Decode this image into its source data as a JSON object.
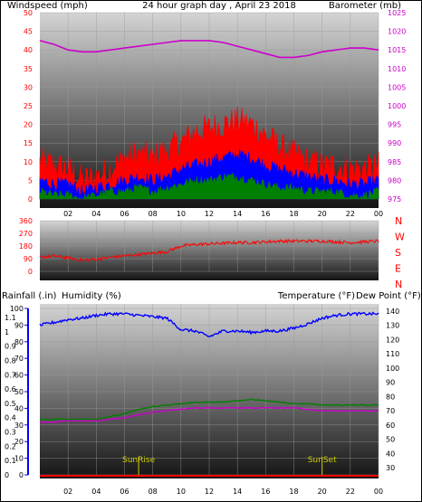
{
  "colors": {
    "wind": "#ff0000",
    "gust_avg": "#0000ff",
    "wind_min": "#008000",
    "baro": "#cc00cc",
    "direction": "#ff0000",
    "humidity": "#0000ff",
    "temperature": "#008000",
    "dewpoint": "#cc00cc",
    "rain": "#ff0000",
    "sun": "#cccc00",
    "temp_label": "#006400",
    "dew_label": "#cc00cc"
  },
  "chart_data": [
    {
      "type": "area",
      "title": "24 hour graph day , April 23 2018",
      "ylabel_left": "Windspeed (mph)",
      "ylabel_right": "Barometer (mb)",
      "xticks": [
        "02",
        "04",
        "06",
        "08",
        "10",
        "12",
        "14",
        "16",
        "18",
        "20",
        "22",
        "00"
      ],
      "yticks_left": [
        "0",
        "5",
        "10",
        "15",
        "20",
        "25",
        "30",
        "35",
        "40",
        "45",
        "50"
      ],
      "yticks_right": [
        "975",
        "980",
        "985",
        "990",
        "995",
        "1000",
        "1005",
        "1010",
        "1015",
        "1020",
        "1025"
      ],
      "ylim_left": [
        0,
        50
      ],
      "ylim_right": [
        975,
        1025
      ],
      "hours": [
        0,
        1,
        2,
        3,
        4,
        5,
        6,
        7,
        8,
        9,
        10,
        11,
        12,
        13,
        14,
        15,
        16,
        17,
        18,
        19,
        20,
        21,
        22,
        23,
        24
      ],
      "series": [
        {
          "name": "",
          "values": [
            10,
            9,
            8,
            5,
            6,
            8,
            11,
            12,
            11,
            13,
            15,
            18,
            19,
            20,
            21,
            20,
            17,
            14,
            12,
            10,
            9,
            9,
            8,
            8,
            9
          ]
        },
        {
          "name": "",
          "values": [
            5,
            4,
            4,
            2,
            3,
            4,
            5,
            6,
            5,
            6,
            8,
            9,
            10,
            11,
            12,
            11,
            9,
            8,
            7,
            6,
            5,
            5,
            4,
            4,
            5
          ]
        },
        {
          "name": "",
          "values": [
            2,
            1,
            1,
            0,
            1,
            2,
            2,
            3,
            2,
            3,
            4,
            5,
            5,
            6,
            6,
            5,
            4,
            3,
            3,
            2,
            2,
            2,
            1,
            1,
            2
          ]
        }
      ],
      "barometer": [
        1017.5,
        1016.5,
        1015,
        1014.5,
        1014.5,
        1015,
        1015.5,
        1016,
        1016.5,
        1017,
        1017.5,
        1017.5,
        1017.5,
        1017,
        1016,
        1015,
        1014,
        1013,
        1013,
        1013.5,
        1014.5,
        1015,
        1015.5,
        1015.5,
        1015
      ]
    },
    {
      "type": "line",
      "yticks_left": [
        "0",
        "90",
        "180",
        "270",
        "360"
      ],
      "ylim": [
        0,
        360
      ],
      "compass": [
        "N",
        "W",
        "S",
        "E",
        "N"
      ],
      "hours": [
        0,
        1,
        2,
        3,
        4,
        5,
        6,
        7,
        8,
        9,
        10,
        11,
        12,
        13,
        14,
        15,
        16,
        17,
        18,
        19,
        20,
        21,
        22,
        23,
        24
      ],
      "direction": [
        100,
        110,
        95,
        80,
        85,
        100,
        110,
        120,
        130,
        140,
        180,
        190,
        195,
        200,
        205,
        205,
        210,
        215,
        215,
        215,
        215,
        210,
        205,
        210,
        215
      ]
    },
    {
      "type": "line",
      "ylabel_left_outer": "Rainfall (.in)",
      "ylabel_left_inner": "Humidity (%)",
      "ylabel_right_1": "Temperature (°F)",
      "ylabel_right_2": "Dew Point (°F)",
      "xticks": [
        "02",
        "04",
        "06",
        "08",
        "10",
        "12",
        "14",
        "16",
        "18",
        "20",
        "22",
        "00"
      ],
      "yticks_rain": [
        "0",
        "0.1",
        "0.2",
        "0.3",
        "0.4",
        "0.5",
        "0.6",
        "0.7",
        "0.8",
        "0.9",
        "1",
        "1.1"
      ],
      "yticks_humidity": [
        "0",
        "10",
        "20",
        "30",
        "40",
        "50",
        "60",
        "70",
        "80",
        "90",
        "100"
      ],
      "yticks_temp": [
        "30",
        "40",
        "50",
        "60",
        "70",
        "80",
        "90",
        "100",
        "110",
        "120",
        "130",
        "140"
      ],
      "ylim_temp": [
        25,
        145
      ],
      "hours": [
        0,
        1,
        2,
        3,
        4,
        5,
        6,
        7,
        8,
        9,
        10,
        11,
        12,
        13,
        14,
        15,
        16,
        17,
        18,
        19,
        20,
        21,
        22,
        23,
        24
      ],
      "humidity_temp_scale": [
        130,
        132,
        134,
        135,
        137,
        138,
        138,
        137,
        136,
        135,
        127,
        126,
        122,
        126,
        126,
        125,
        126,
        126,
        128,
        131,
        135,
        137,
        138,
        138,
        138
      ],
      "temperature": [
        64,
        64,
        64,
        64,
        64,
        66,
        68,
        71,
        73,
        74,
        75,
        76,
        76,
        76,
        77,
        78,
        77,
        76,
        75,
        75,
        74,
        74,
        74,
        74,
        74
      ],
      "dewpoint": [
        62,
        62,
        63,
        63,
        63,
        64,
        65,
        67,
        69,
        70,
        71,
        72,
        72,
        72,
        72,
        72,
        72,
        72,
        72,
        71,
        70,
        70,
        70,
        70,
        70
      ],
      "rainfall": [
        0,
        0,
        0,
        0,
        0,
        0,
        0,
        0,
        0,
        0,
        0,
        0,
        0,
        0,
        0,
        0,
        0,
        0,
        0,
        0,
        0,
        0,
        0,
        0,
        0
      ],
      "sunrise": {
        "label": "SunRise",
        "hour": 7
      },
      "sunset": {
        "label": "SunSet",
        "hour": 20
      }
    }
  ]
}
